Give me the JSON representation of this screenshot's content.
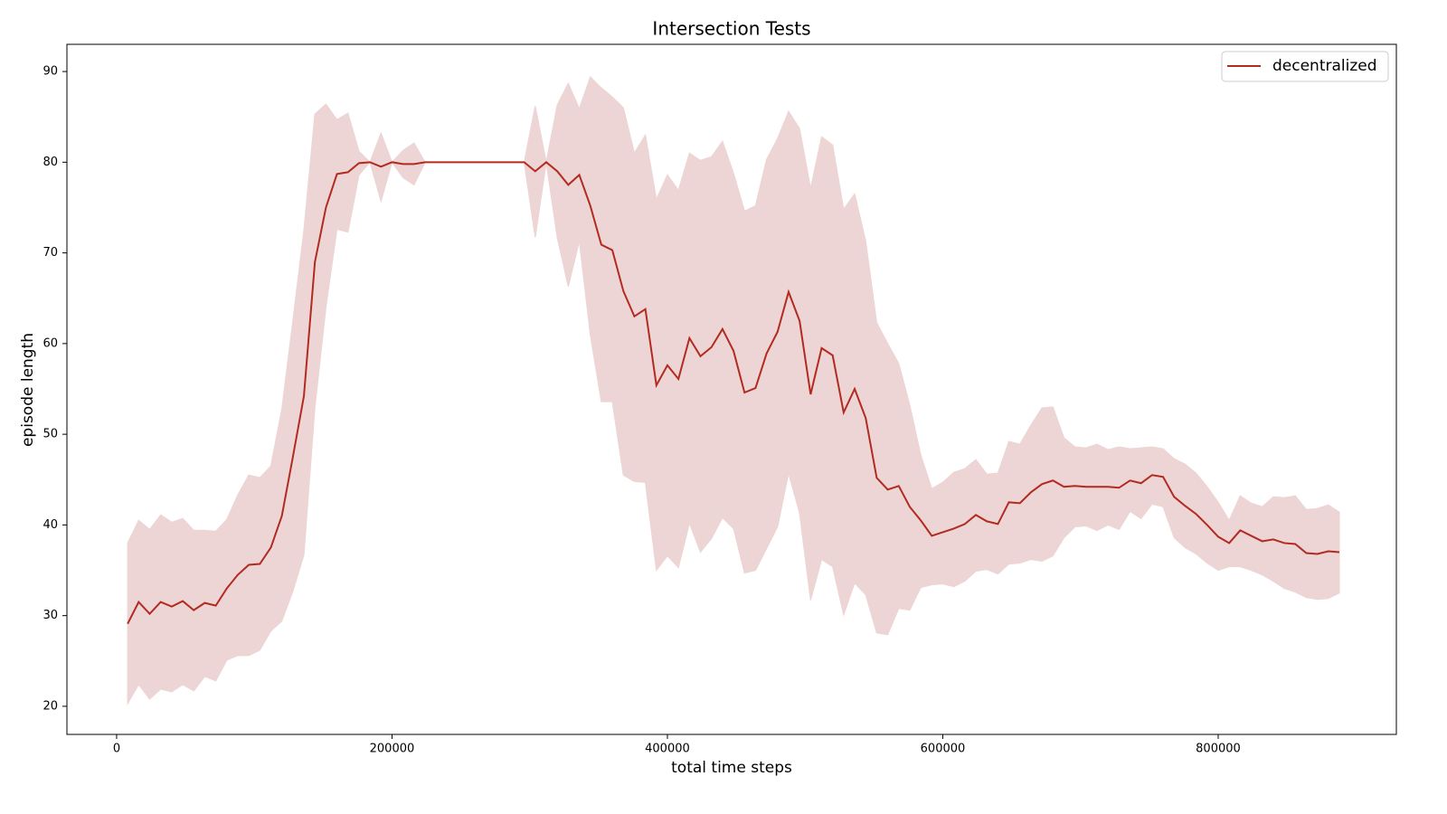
{
  "chart_data": {
    "type": "line_band",
    "title": "Intersection Tests",
    "x_label": "total time steps",
    "y_label": "episode length",
    "xlim": [
      -36100,
      929400
    ],
    "ylim": [
      16.9,
      93.0
    ],
    "xticks": [
      0,
      200000,
      400000,
      600000,
      800000
    ],
    "yticks": [
      20,
      30,
      40,
      50,
      60,
      70,
      80,
      90
    ],
    "legend": "upper right",
    "x": [
      8000,
      16000,
      24000,
      32000,
      40000,
      48000,
      56000,
      64000,
      72000,
      80000,
      88000,
      96000,
      104000,
      112000,
      120000,
      128000,
      136000,
      144000,
      152000,
      160000,
      168000,
      176000,
      184000,
      192000,
      200000,
      208000,
      216000,
      224000,
      232000,
      240000,
      248000,
      256000,
      264000,
      272000,
      280000,
      288000,
      296000,
      304000,
      312000,
      320000,
      328000,
      336000,
      344000,
      352000,
      360000,
      368000,
      376000,
      384000,
      392000,
      400000,
      408000,
      416000,
      424000,
      432000,
      440000,
      448000,
      456000,
      464000,
      472000,
      480000,
      488000,
      496000,
      504000,
      512000,
      520000,
      528000,
      536000,
      544000,
      552000,
      560000,
      568000,
      576000,
      584000,
      592000,
      600000,
      608000,
      616000,
      624000,
      632000,
      640000,
      648000,
      656000,
      664000,
      672000,
      680000,
      688000,
      696000,
      704000,
      712000,
      720000,
      728000,
      736000,
      744000,
      752000,
      760000,
      768000,
      776000,
      784000,
      792000,
      800000,
      808000,
      816000,
      824000,
      832000,
      840000,
      848000,
      856000,
      864000,
      872000,
      880000,
      888000
    ],
    "series": [
      {
        "name": "decentralized",
        "color": "#b22a20",
        "band_color": "#ecd5d4",
        "values": [
          29.1,
          31.5,
          30.2,
          31.5,
          31.0,
          31.6,
          30.6,
          31.4,
          31.1,
          33.0,
          34.5,
          35.6,
          35.7,
          37.5,
          41.0,
          47.5,
          54.2,
          69.0,
          75.0,
          78.7,
          78.9,
          79.9,
          80.0,
          79.5,
          80.0,
          79.8,
          79.8,
          80.0,
          80,
          80,
          80,
          80,
          80,
          80,
          80,
          80,
          80,
          79.0,
          80.0,
          79.0,
          77.5,
          78.6,
          75.2,
          70.9,
          70.3,
          65.8,
          63.0,
          63.8,
          55.4,
          57.6,
          56.1,
          60.6,
          58.6,
          59.6,
          61.6,
          59.2,
          54.6,
          55.1,
          58.9,
          61.3,
          65.7,
          62.5,
          54.4,
          59.5,
          58.7,
          52.4,
          55.0,
          51.8,
          45.2,
          43.9,
          44.3,
          42.0,
          40.5,
          38.8,
          39.2,
          39.6,
          40.1,
          41.1,
          40.4,
          40.1,
          42.5,
          42.4,
          43.6,
          44.5,
          44.9,
          44.2,
          44.3,
          44.2,
          44.2,
          44.2,
          44.1,
          44.9,
          44.6,
          45.5,
          45.3,
          43.1,
          42.1,
          41.2,
          40.0,
          38.7,
          38.0,
          39.4,
          38.8,
          38.2,
          38.4,
          38.0,
          37.9,
          36.9,
          36.8,
          37.1,
          37.0
        ],
        "upper": [
          38.0,
          40.5,
          39.5,
          41.1,
          40.3,
          40.7,
          39.4,
          39.4,
          39.3,
          40.6,
          43.3,
          45.5,
          45.2,
          46.5,
          52.8,
          62.5,
          72.5,
          85.3,
          86.4,
          84.7,
          85.4,
          81.2,
          80.0,
          83.2,
          80.0,
          81.3,
          82.1,
          80.0,
          80,
          80,
          80,
          80,
          80,
          80,
          80,
          80,
          80,
          86.2,
          80.0,
          86.3,
          88.7,
          85.9,
          89.4,
          88.2,
          87.2,
          86.0,
          81.0,
          83.0,
          75.9,
          78.6,
          76.9,
          81.0,
          80.2,
          80.6,
          82.3,
          78.8,
          74.6,
          75.2,
          80.3,
          82.6,
          85.6,
          83.7,
          77.1,
          82.8,
          81.9,
          74.8,
          76.5,
          71.3,
          62.3,
          60.0,
          57.8,
          53.2,
          47.7,
          44.0,
          44.7,
          45.8,
          46.2,
          47.2,
          45.6,
          45.7,
          49.2,
          48.9,
          51.0,
          52.9,
          53.0,
          49.6,
          48.6,
          48.5,
          48.9,
          48.3,
          48.6,
          48.4,
          48.5,
          48.6,
          48.4,
          47.3,
          46.7,
          45.7,
          44.2,
          42.5,
          40.5,
          43.2,
          42.4,
          42.0,
          43.1,
          43.0,
          43.2,
          41.7,
          41.8,
          42.2,
          41.4
        ],
        "lower": [
          20.3,
          22.4,
          20.8,
          21.9,
          21.6,
          22.4,
          21.7,
          23.3,
          22.8,
          25.1,
          25.6,
          25.6,
          26.2,
          28.3,
          29.4,
          32.7,
          36.7,
          53.0,
          64.0,
          72.6,
          72.3,
          78.6,
          80.0,
          75.7,
          80.0,
          78.3,
          77.5,
          80.0,
          80,
          80,
          80,
          80,
          80,
          80,
          80,
          80,
          80,
          71.7,
          80.0,
          71.7,
          66.3,
          71.3,
          61.0,
          53.6,
          53.6,
          45.5,
          44.8,
          44.7,
          35.0,
          36.6,
          35.3,
          40.2,
          37.0,
          38.5,
          40.8,
          39.6,
          34.7,
          35.0,
          37.4,
          39.8,
          45.7,
          41.3,
          31.7,
          36.2,
          35.4,
          30.1,
          33.6,
          32.3,
          28.1,
          27.9,
          30.8,
          30.6,
          33.1,
          33.4,
          33.5,
          33.2,
          33.8,
          34.9,
          35.1,
          34.6,
          35.7,
          35.8,
          36.2,
          36.0,
          36.6,
          38.6,
          39.8,
          39.9,
          39.4,
          40.0,
          39.5,
          41.5,
          40.7,
          42.3,
          42.0,
          38.6,
          37.5,
          36.8,
          35.8,
          35.0,
          35.4,
          35.4,
          35.0,
          34.5,
          33.8,
          33.0,
          32.6,
          32.0,
          31.8,
          31.9,
          32.5
        ]
      }
    ]
  }
}
